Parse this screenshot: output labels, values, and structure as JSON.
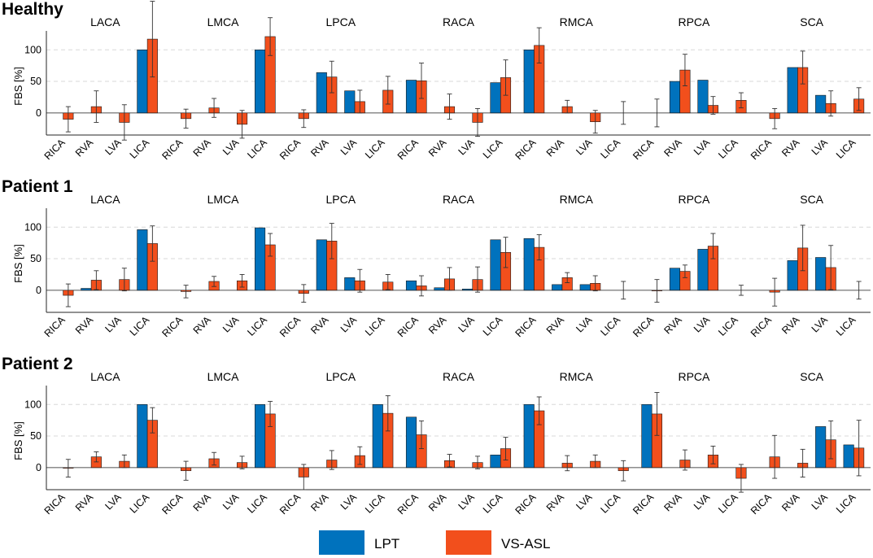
{
  "chart_data": {
    "type": "bar",
    "ylabel": "FBS [%]",
    "ylim": [
      -35,
      130
    ],
    "yticks": [
      0,
      50,
      100
    ],
    "grid": true,
    "legend": [
      {
        "name": "LPT",
        "color": "#0072BD"
      },
      {
        "name": "VS-ASL",
        "color": "#F24F1C"
      }
    ],
    "regions": [
      "LACA",
      "LMCA",
      "LPCA",
      "RACA",
      "RMCA",
      "RPCA",
      "SCA"
    ],
    "categories": [
      "RICA",
      "RVA",
      "LVA",
      "LICA"
    ],
    "panels": [
      {
        "title": "Healthy",
        "LPT": [
          [
            0,
            0,
            0,
            100
          ],
          [
            0,
            0,
            0,
            100
          ],
          [
            0,
            64,
            35,
            0
          ],
          [
            52,
            0,
            0,
            48
          ],
          [
            100,
            0,
            0,
            0
          ],
          [
            0,
            50,
            52,
            0
          ],
          [
            0,
            72,
            28,
            0
          ]
        ],
        "VSASL": [
          [
            -10,
            10,
            -15,
            117
          ],
          [
            -9,
            8,
            -18,
            121
          ],
          [
            -9,
            57,
            18,
            36
          ],
          [
            51,
            10,
            -15,
            56
          ],
          [
            107,
            10,
            -14,
            0
          ],
          [
            0,
            68,
            12,
            20
          ],
          [
            -9,
            72,
            15,
            22
          ]
        ],
        "VSASL_err": [
          [
            20,
            25,
            28,
            60
          ],
          [
            15,
            15,
            22,
            30
          ],
          [
            14,
            25,
            18,
            22
          ],
          [
            28,
            20,
            22,
            28
          ],
          [
            28,
            10,
            18,
            18
          ],
          [
            22,
            25,
            14,
            12
          ],
          [
            16,
            26,
            20,
            18
          ]
        ]
      },
      {
        "title": "Patient 1",
        "LPT": [
          [
            0,
            3,
            0,
            96
          ],
          [
            0,
            0,
            0,
            99
          ],
          [
            0,
            80,
            20,
            0
          ],
          [
            15,
            4,
            2,
            80
          ],
          [
            82,
            9,
            9,
            0
          ],
          [
            0,
            35,
            65,
            0
          ],
          [
            0,
            47,
            52,
            0
          ]
        ],
        "VSASL": [
          [
            -8,
            16,
            17,
            74
          ],
          [
            -2,
            14,
            15,
            72
          ],
          [
            -5,
            78,
            15,
            13
          ],
          [
            7,
            18,
            17,
            60
          ],
          [
            68,
            20,
            11,
            0
          ],
          [
            -1,
            30,
            70,
            0
          ],
          [
            -3,
            67,
            36,
            0
          ]
        ],
        "VSASL_err": [
          [
            18,
            15,
            18,
            28
          ],
          [
            10,
            8,
            10,
            18
          ],
          [
            14,
            28,
            18,
            12
          ],
          [
            16,
            18,
            20,
            24
          ],
          [
            20,
            8,
            12,
            14
          ],
          [
            18,
            10,
            20,
            8
          ],
          [
            22,
            36,
            35,
            14
          ]
        ]
      },
      {
        "title": "Patient 2",
        "LPT": [
          [
            0,
            0,
            0,
            100
          ],
          [
            0,
            0,
            0,
            100
          ],
          [
            0,
            0,
            0,
            100
          ],
          [
            80,
            0,
            0,
            20
          ],
          [
            100,
            0,
            0,
            0
          ],
          [
            100,
            0,
            0,
            0
          ],
          [
            0,
            0,
            65,
            36
          ]
        ],
        "VSASL": [
          [
            -1,
            17,
            10,
            75
          ],
          [
            -5,
            14,
            8,
            85
          ],
          [
            -15,
            12,
            19,
            86
          ],
          [
            52,
            11,
            8,
            30
          ],
          [
            90,
            7,
            10,
            -5
          ],
          [
            85,
            12,
            20,
            -17
          ],
          [
            17,
            7,
            44,
            31
          ]
        ],
        "VSASL_err": [
          [
            14,
            8,
            10,
            20
          ],
          [
            15,
            10,
            10,
            20
          ],
          [
            20,
            15,
            14,
            28
          ],
          [
            22,
            10,
            10,
            18
          ],
          [
            22,
            12,
            10,
            16
          ],
          [
            34,
            16,
            14,
            22
          ],
          [
            34,
            22,
            30,
            44
          ]
        ]
      }
    ]
  }
}
